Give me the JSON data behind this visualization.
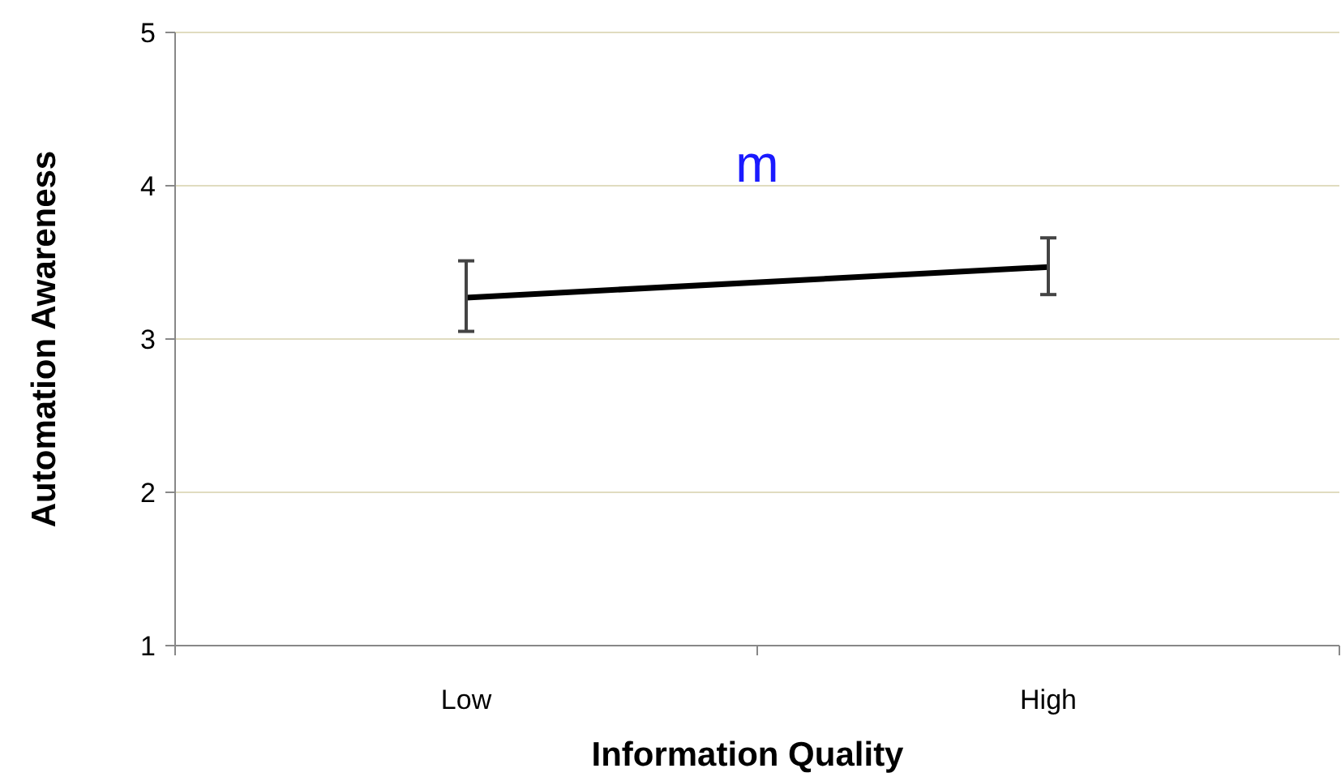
{
  "chart_data": {
    "type": "line",
    "xlabel": "Information Quality",
    "ylabel": "Automation Awareness",
    "categories": [
      "Low",
      "High"
    ],
    "series": [
      {
        "color": "#000000",
        "values": [
          3.27,
          3.47
        ],
        "errors": [
          [
            3.05,
            3.51
          ],
          [
            3.29,
            3.66
          ]
        ]
      }
    ],
    "ylim": [
      1,
      5
    ],
    "yticks": [
      1,
      2,
      3,
      4,
      5
    ],
    "grid": "y",
    "marker": "none",
    "line_style": "solid",
    "annotations": [
      "m"
    ]
  }
}
